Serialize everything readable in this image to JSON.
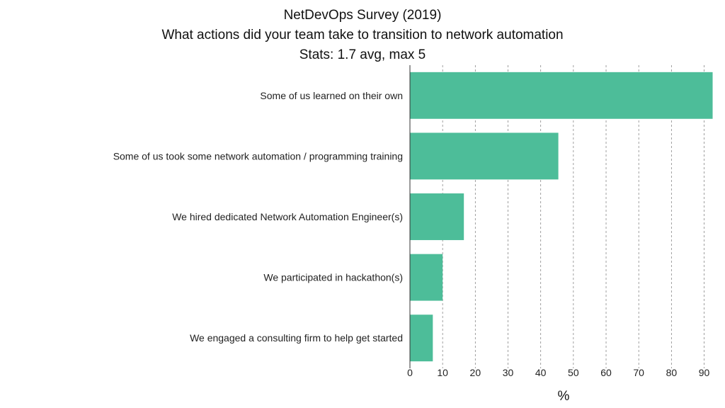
{
  "chart_data": {
    "type": "bar",
    "orientation": "horizontal",
    "title": "NetDevOps Survey (2019)",
    "subtitle": "What actions did your team take to transition to network automation",
    "stats": "Stats: 1.7 avg, max 5",
    "categories": [
      "Some of us learned on their own",
      "Some of us took some network automation / programming training",
      "We hired dedicated Network Automation Engineer(s)",
      "We participated in hackathon(s)",
      "We engaged a consulting firm to help get started"
    ],
    "values": [
      92.6,
      45.4,
      16.5,
      10.0,
      7.0
    ],
    "xlabel": "%",
    "ylabel": "",
    "xlim": [
      0,
      94
    ],
    "xticks": [
      0,
      10,
      20,
      30,
      40,
      50,
      60,
      70,
      80,
      90
    ],
    "grid": "vertical dashed",
    "bar_color": "#4dbd99",
    "grid_color": "#888888"
  }
}
